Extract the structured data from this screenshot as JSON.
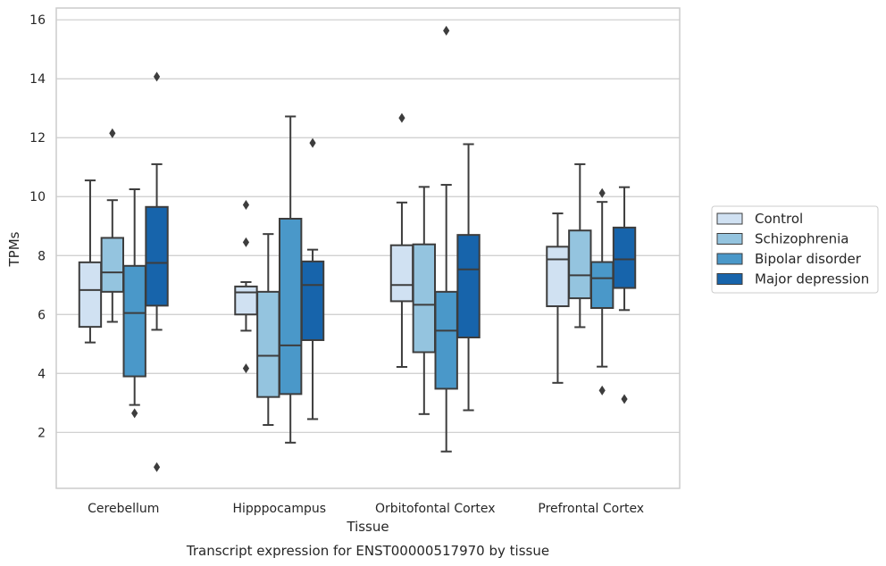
{
  "chart_data": {
    "type": "boxplot",
    "title": "",
    "caption": "Transcript expression for ENST00000517970 by tissue",
    "xlabel": "Tissue",
    "ylabel": "TPMs",
    "ylim": [
      0.1,
      16.4
    ],
    "yticks": [
      2,
      4,
      6,
      8,
      10,
      12,
      14,
      16
    ],
    "grid": true,
    "legend_position": "right",
    "categories": [
      "Cerebellum",
      "Hipppocampus",
      "Orbitofontal Cortex",
      "Prefrontal Cortex"
    ],
    "series": [
      {
        "name": "Control",
        "color": "#d0e1f2",
        "boxes": [
          {
            "whislo": 5.05,
            "q1": 5.58,
            "med": 6.83,
            "q3": 7.77,
            "whishi": 10.55,
            "fliers": []
          },
          {
            "whislo": 5.45,
            "q1": 6.0,
            "med": 6.75,
            "q3": 6.95,
            "whishi": 7.1,
            "fliers": [
              9.72,
              8.45,
              4.17
            ]
          },
          {
            "whislo": 4.22,
            "q1": 6.45,
            "med": 7.0,
            "q3": 8.35,
            "whishi": 9.8,
            "fliers": [
              12.67
            ]
          },
          {
            "whislo": 3.68,
            "q1": 6.28,
            "med": 7.87,
            "q3": 8.3,
            "whishi": 9.43,
            "fliers": []
          }
        ]
      },
      {
        "name": "Schizophrenia",
        "color": "#94c4df",
        "boxes": [
          {
            "whislo": 5.75,
            "q1": 6.77,
            "med": 7.43,
            "q3": 8.6,
            "whishi": 9.88,
            "fliers": [
              12.15
            ]
          },
          {
            "whislo": 2.25,
            "q1": 3.2,
            "med": 4.6,
            "q3": 6.77,
            "whishi": 8.73,
            "fliers": []
          },
          {
            "whislo": 2.62,
            "q1": 4.72,
            "med": 6.33,
            "q3": 8.38,
            "whishi": 10.33,
            "fliers": []
          },
          {
            "whislo": 5.57,
            "q1": 6.55,
            "med": 7.33,
            "q3": 8.85,
            "whishi": 11.1,
            "fliers": []
          }
        ]
      },
      {
        "name": "Bipolar disorder",
        "color": "#4a98c9",
        "boxes": [
          {
            "whislo": 2.93,
            "q1": 3.9,
            "med": 6.05,
            "q3": 7.65,
            "whishi": 10.25,
            "fliers": [
              2.65
            ]
          },
          {
            "whislo": 1.65,
            "q1": 3.3,
            "med": 4.95,
            "q3": 9.25,
            "whishi": 12.72,
            "fliers": []
          },
          {
            "whislo": 1.35,
            "q1": 3.48,
            "med": 5.45,
            "q3": 6.77,
            "whishi": 10.4,
            "fliers": [
              15.63
            ]
          },
          {
            "whislo": 4.23,
            "q1": 6.22,
            "med": 7.23,
            "q3": 7.78,
            "whishi": 9.82,
            "fliers": [
              10.12,
              3.42
            ]
          }
        ]
      },
      {
        "name": "Major depression",
        "color": "#1764ab",
        "boxes": [
          {
            "whislo": 5.48,
            "q1": 6.3,
            "med": 7.75,
            "q3": 9.65,
            "whishi": 11.1,
            "fliers": [
              14.07,
              0.82
            ]
          },
          {
            "whislo": 2.45,
            "q1": 5.13,
            "med": 7.0,
            "q3": 7.8,
            "whishi": 8.2,
            "fliers": [
              11.82
            ]
          },
          {
            "whislo": 2.75,
            "q1": 5.22,
            "med": 7.53,
            "q3": 8.7,
            "whishi": 11.78,
            "fliers": []
          },
          {
            "whislo": 6.15,
            "q1": 6.9,
            "med": 7.87,
            "q3": 8.95,
            "whishi": 10.32,
            "fliers": [
              3.13
            ]
          }
        ]
      }
    ]
  }
}
